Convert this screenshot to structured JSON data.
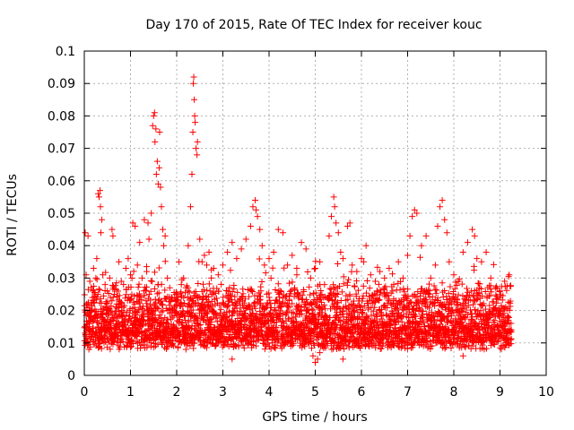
{
  "chart_data": {
    "type": "scatter",
    "title": "Day 170 of 2015, Rate Of TEC Index for receiver kouc",
    "xlabel": "GPS time / hours",
    "ylabel": "ROTI / TECUs",
    "xlim": [
      0,
      10
    ],
    "ylim": [
      0,
      0.1
    ],
    "xticks": [
      0,
      1,
      2,
      3,
      4,
      5,
      6,
      7,
      8,
      9,
      10
    ],
    "yticks": [
      0,
      0.01,
      0.02,
      0.03,
      0.04,
      0.05,
      0.06,
      0.07,
      0.08,
      0.09,
      0.1
    ],
    "ytick_labels": [
      "0",
      "0.01",
      "0.02",
      "0.03",
      "0.04",
      "0.05",
      "0.06",
      "0.07",
      "0.08",
      "0.09",
      "0.1"
    ],
    "grid": true,
    "marker": "+",
    "color": "#ff0000",
    "series": [
      {
        "name": "ROTI",
        "data_extent_hours": [
          0.0,
          9.25
        ],
        "baseline_band": [
          0.008,
          0.025
        ],
        "points": [
          [
            0.02,
            0.044
          ],
          [
            0.04,
            0.031
          ],
          [
            0.05,
            0.022
          ],
          [
            0.08,
            0.043
          ],
          [
            0.1,
            0.015
          ],
          [
            0.12,
            0.029
          ],
          [
            0.15,
            0.012
          ],
          [
            0.18,
            0.026
          ],
          [
            0.2,
            0.033
          ],
          [
            0.22,
            0.018
          ],
          [
            0.25,
            0.03
          ],
          [
            0.27,
            0.036
          ],
          [
            0.3,
            0.056
          ],
          [
            0.32,
            0.055
          ],
          [
            0.34,
            0.057
          ],
          [
            0.35,
            0.052
          ],
          [
            0.36,
            0.044
          ],
          [
            0.38,
            0.048
          ],
          [
            0.4,
            0.031
          ],
          [
            0.45,
            0.028
          ],
          [
            0.5,
            0.026
          ],
          [
            0.55,
            0.03
          ],
          [
            0.6,
            0.045
          ],
          [
            0.62,
            0.043
          ],
          [
            0.65,
            0.025
          ],
          [
            0.7,
            0.022
          ],
          [
            0.75,
            0.035
          ],
          [
            0.8,
            0.029
          ],
          [
            0.85,
            0.028
          ],
          [
            0.9,
            0.033
          ],
          [
            0.95,
            0.036
          ],
          [
            1.0,
            0.031
          ],
          [
            1.05,
            0.047
          ],
          [
            1.1,
            0.046
          ],
          [
            1.15,
            0.034
          ],
          [
            1.2,
            0.041
          ],
          [
            1.25,
            0.03
          ],
          [
            1.3,
            0.048
          ],
          [
            1.35,
            0.032
          ],
          [
            1.38,
            0.047
          ],
          [
            1.4,
            0.042
          ],
          [
            1.45,
            0.05
          ],
          [
            1.48,
            0.077
          ],
          [
            1.5,
            0.08
          ],
          [
            1.52,
            0.081
          ],
          [
            1.53,
            0.072
          ],
          [
            1.55,
            0.076
          ],
          [
            1.56,
            0.062
          ],
          [
            1.58,
            0.066
          ],
          [
            1.6,
            0.059
          ],
          [
            1.62,
            0.064
          ],
          [
            1.63,
            0.075
          ],
          [
            1.65,
            0.058
          ],
          [
            1.67,
            0.052
          ],
          [
            1.7,
            0.045
          ],
          [
            1.72,
            0.04
          ],
          [
            1.75,
            0.043
          ],
          [
            1.8,
            0.03
          ],
          [
            1.85,
            0.027
          ],
          [
            1.9,
            0.024
          ],
          [
            2.0,
            0.023
          ],
          [
            2.05,
            0.035
          ],
          [
            2.1,
            0.028
          ],
          [
            2.15,
            0.03
          ],
          [
            2.2,
            0.027
          ],
          [
            2.25,
            0.04
          ],
          [
            2.3,
            0.052
          ],
          [
            2.33,
            0.062
          ],
          [
            2.35,
            0.075
          ],
          [
            2.36,
            0.09
          ],
          [
            2.37,
            0.092
          ],
          [
            2.38,
            0.085
          ],
          [
            2.39,
            0.08
          ],
          [
            2.4,
            0.078
          ],
          [
            2.42,
            0.07
          ],
          [
            2.44,
            0.068
          ],
          [
            2.45,
            0.072
          ],
          [
            2.5,
            0.042
          ],
          [
            2.55,
            0.035
          ],
          [
            2.6,
            0.037
          ],
          [
            2.65,
            0.034
          ],
          [
            2.7,
            0.038
          ],
          [
            2.75,
            0.03
          ],
          [
            2.8,
            0.033
          ],
          [
            2.9,
            0.031
          ],
          [
            3.0,
            0.034
          ],
          [
            3.1,
            0.038
          ],
          [
            3.2,
            0.041
          ],
          [
            3.3,
            0.036
          ],
          [
            3.4,
            0.039
          ],
          [
            3.5,
            0.042
          ],
          [
            3.6,
            0.046
          ],
          [
            3.65,
            0.052
          ],
          [
            3.7,
            0.054
          ],
          [
            3.72,
            0.051
          ],
          [
            3.75,
            0.049
          ],
          [
            3.8,
            0.045
          ],
          [
            3.85,
            0.04
          ],
          [
            3.9,
            0.034
          ],
          [
            4.0,
            0.036
          ],
          [
            4.1,
            0.038
          ],
          [
            4.2,
            0.045
          ],
          [
            4.3,
            0.044
          ],
          [
            4.4,
            0.034
          ],
          [
            4.5,
            0.037
          ],
          [
            4.6,
            0.033
          ],
          [
            4.7,
            0.041
          ],
          [
            4.8,
            0.039
          ],
          [
            4.9,
            0.03
          ],
          [
            5.0,
            0.033
          ],
          [
            5.1,
            0.035
          ],
          [
            5.2,
            0.028
          ],
          [
            5.3,
            0.043
          ],
          [
            5.35,
            0.049
          ],
          [
            5.4,
            0.055
          ],
          [
            5.42,
            0.052
          ],
          [
            5.45,
            0.047
          ],
          [
            5.5,
            0.044
          ],
          [
            5.55,
            0.038
          ],
          [
            5.6,
            0.036
          ],
          [
            5.7,
            0.046
          ],
          [
            5.75,
            0.047
          ],
          [
            5.8,
            0.034
          ],
          [
            5.9,
            0.032
          ],
          [
            6.0,
            0.036
          ],
          [
            6.05,
            0.035
          ],
          [
            6.1,
            0.04
          ],
          [
            6.2,
            0.031
          ],
          [
            6.3,
            0.029
          ],
          [
            6.4,
            0.032
          ],
          [
            6.5,
            0.03
          ],
          [
            6.6,
            0.033
          ],
          [
            6.7,
            0.028
          ],
          [
            6.8,
            0.035
          ],
          [
            6.9,
            0.03
          ],
          [
            7.0,
            0.037
          ],
          [
            7.05,
            0.043
          ],
          [
            7.1,
            0.049
          ],
          [
            7.15,
            0.051
          ],
          [
            7.2,
            0.05
          ],
          [
            7.3,
            0.04
          ],
          [
            7.4,
            0.043
          ],
          [
            7.5,
            0.03
          ],
          [
            7.6,
            0.034
          ],
          [
            7.65,
            0.046
          ],
          [
            7.7,
            0.052
          ],
          [
            7.75,
            0.054
          ],
          [
            7.8,
            0.048
          ],
          [
            7.85,
            0.044
          ],
          [
            7.9,
            0.035
          ],
          [
            8.0,
            0.031
          ],
          [
            8.1,
            0.029
          ],
          [
            8.2,
            0.038
          ],
          [
            8.3,
            0.041
          ],
          [
            8.4,
            0.045
          ],
          [
            8.45,
            0.043
          ],
          [
            8.5,
            0.036
          ],
          [
            8.6,
            0.035
          ],
          [
            8.7,
            0.038
          ],
          [
            8.8,
            0.03
          ],
          [
            8.9,
            0.027
          ],
          [
            9.0,
            0.024
          ],
          [
            9.1,
            0.029
          ],
          [
            9.2,
            0.031
          ],
          [
            4.95,
            0.006
          ],
          [
            5.0,
            0.004
          ],
          [
            5.05,
            0.005
          ],
          [
            5.1,
            0.007
          ],
          [
            5.6,
            0.005
          ],
          [
            8.2,
            0.006
          ],
          [
            3.2,
            0.005
          ],
          [
            1.8,
            0.009
          ],
          [
            0.1,
            0.008
          ],
          [
            2.2,
            0.008
          ]
        ]
      }
    ]
  }
}
